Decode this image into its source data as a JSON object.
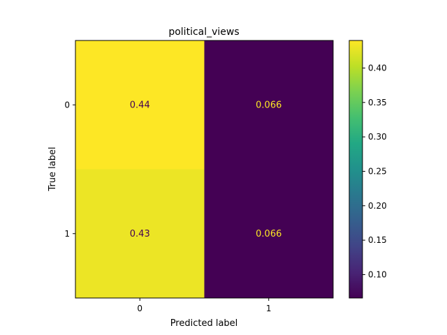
{
  "chart_data": {
    "type": "heatmap",
    "title": "political_views",
    "xlabel": "Predicted label",
    "ylabel": "True label",
    "x_categories": [
      "0",
      "1"
    ],
    "y_categories": [
      "0",
      "1"
    ],
    "matrix": [
      [
        0.44,
        0.066
      ],
      [
        0.43,
        0.066
      ]
    ],
    "cell_labels": [
      [
        "0.44",
        "0.066"
      ],
      [
        "0.43",
        "0.066"
      ]
    ],
    "colormap": "viridis",
    "colorbar": {
      "range": [
        0.066,
        0.44
      ],
      "ticks": [
        0.1,
        0.15,
        0.2,
        0.25,
        0.3,
        0.35,
        0.4
      ],
      "tick_labels": [
        "0.10",
        "0.15",
        "0.20",
        "0.25",
        "0.30",
        "0.35",
        "0.40"
      ]
    },
    "colors": {
      "low": "#440154",
      "high": "#fde725",
      "text_on_dark": "#fde725",
      "text_on_light": "#440154"
    },
    "grid": false
  }
}
